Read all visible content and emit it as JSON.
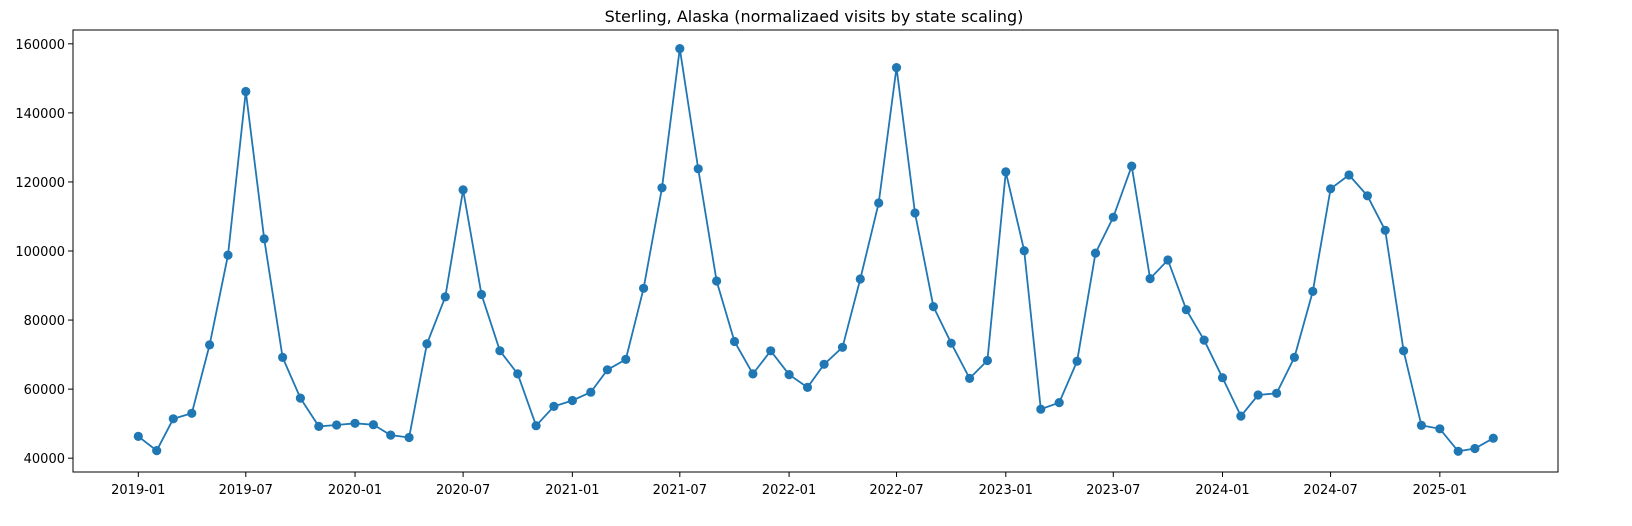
{
  "chart_data": {
    "type": "line",
    "title": "Sterling, Alaska (normalizaed visits by state scaling)",
    "xlabel": "",
    "ylabel": "",
    "x_axis_type": "date",
    "xlim": [
      "2018-09-13",
      "2025-07-19"
    ],
    "ylim": [
      36000,
      164000
    ],
    "grid": false,
    "x_ticks": [
      "2019-01",
      "2019-07",
      "2020-01",
      "2020-07",
      "2021-01",
      "2021-07",
      "2022-01",
      "2022-07",
      "2023-01",
      "2023-07",
      "2024-01",
      "2024-07",
      "2025-01"
    ],
    "y_ticks": [
      40000,
      60000,
      80000,
      100000,
      120000,
      140000,
      160000
    ],
    "series": [
      {
        "color": "#1f77b4",
        "marker": "circle",
        "x": [
          "2019-01",
          "2019-02",
          "2019-03",
          "2019-04",
          "2019-05",
          "2019-06",
          "2019-07",
          "2019-08",
          "2019-09",
          "2019-10",
          "2019-11",
          "2019-12",
          "2020-01",
          "2020-02",
          "2020-03",
          "2020-04",
          "2020-05",
          "2020-06",
          "2020-07",
          "2020-08",
          "2020-09",
          "2020-10",
          "2020-11",
          "2020-12",
          "2021-01",
          "2021-02",
          "2021-03",
          "2021-04",
          "2021-05",
          "2021-06",
          "2021-07",
          "2021-08",
          "2021-09",
          "2021-10",
          "2021-11",
          "2021-12",
          "2022-01",
          "2022-02",
          "2022-03",
          "2022-04",
          "2022-05",
          "2022-06",
          "2022-07",
          "2022-08",
          "2022-09",
          "2022-10",
          "2022-11",
          "2022-12",
          "2023-01",
          "2023-02",
          "2023-03",
          "2023-04",
          "2023-05",
          "2023-06",
          "2023-07",
          "2023-08",
          "2023-09",
          "2023-10",
          "2023-11",
          "2023-12",
          "2024-01",
          "2024-02",
          "2024-03",
          "2024-04",
          "2024-05",
          "2024-06",
          "2024-07",
          "2024-08",
          "2024-09",
          "2024-10",
          "2024-11",
          "2024-12",
          "2025-01",
          "2025-02",
          "2025-03",
          "2025-04"
        ],
        "y": [
          46300,
          42200,
          51400,
          53000,
          72800,
          98800,
          146200,
          103500,
          69200,
          57400,
          49200,
          49600,
          50100,
          49700,
          46700,
          46000,
          73100,
          86700,
          117700,
          87400,
          71100,
          64400,
          49400,
          55000,
          56700,
          59100,
          65600,
          68600,
          89200,
          118300,
          158600,
          123800,
          91300,
          73800,
          64400,
          71100,
          64200,
          60500,
          67200,
          72100,
          91900,
          113900,
          153100,
          111000,
          83900,
          73300,
          63100,
          68300,
          122900,
          100100,
          54200,
          56100,
          68100,
          99400,
          109800,
          124600,
          92000,
          97400,
          83000,
          74200,
          63300,
          52200,
          58300,
          58800,
          69200,
          88300,
          118000,
          122000,
          116000,
          106000,
          71100,
          49500,
          48500,
          42000,
          42800,
          45800
        ]
      }
    ]
  }
}
